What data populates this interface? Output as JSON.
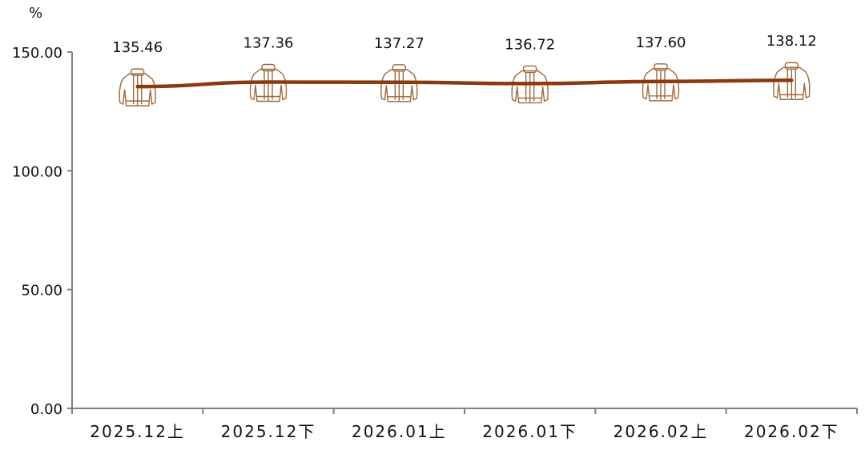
{
  "chart_data": {
    "type": "line",
    "title": "",
    "xlabel": "",
    "ylabel": "%",
    "ylim": [
      0,
      150
    ],
    "yticks": [
      "0.00",
      "50.00",
      "100.00",
      "150.00"
    ],
    "categories": [
      "2025.12上",
      "2025.12下",
      "2026.01上",
      "2026.01下",
      "2026.02上",
      "2026.02下"
    ],
    "series": [
      {
        "values": [
          135.46,
          137.36,
          137.27,
          136.72,
          137.6,
          138.12
        ],
        "labels": [
          "135.46",
          "137.36",
          "137.27",
          "136.72",
          "137.60",
          "138.12"
        ]
      }
    ],
    "marker": "jacket-icon",
    "grid": false,
    "colors": {
      "line": "#8B3A0F",
      "marker": "#A0683A",
      "axis": "#808080"
    }
  }
}
